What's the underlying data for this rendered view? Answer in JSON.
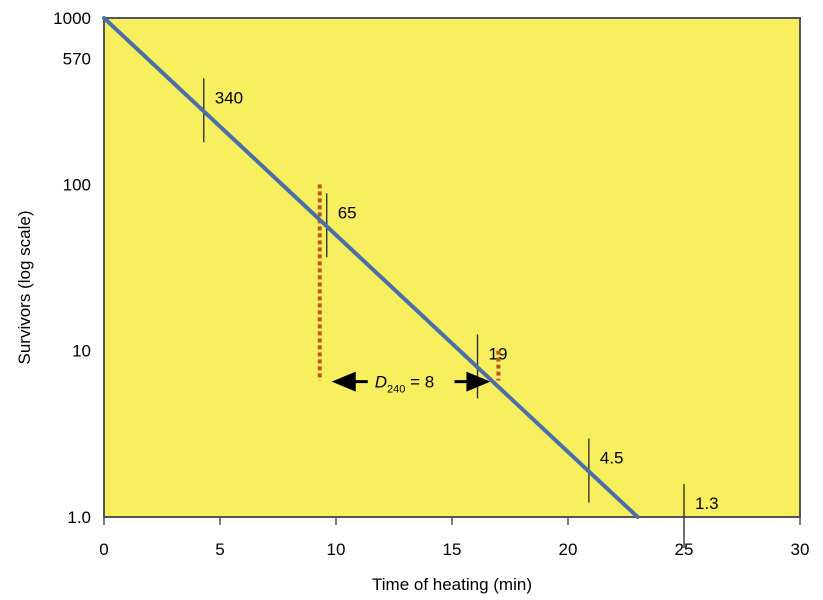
{
  "chart_data": {
    "type": "line",
    "xlabel": "Time of heating (min)",
    "ylabel": "Survivors (log scale)",
    "xlim": [
      0,
      30
    ],
    "ylim": [
      1.0,
      1000
    ],
    "y_scale": "log",
    "grid": false,
    "x_ticks": [
      {
        "value": 0,
        "label": "0"
      },
      {
        "value": 5,
        "label": "5"
      },
      {
        "value": 10,
        "label": "10"
      },
      {
        "value": 15,
        "label": "15"
      },
      {
        "value": 20,
        "label": "20"
      },
      {
        "value": 25,
        "label": "25"
      },
      {
        "value": 30,
        "label": "30"
      }
    ],
    "y_ticks": [
      {
        "value": 1.0,
        "label": "1.0"
      },
      {
        "value": 10,
        "label": "10"
      },
      {
        "value": 100,
        "label": "100"
      },
      {
        "value": 570,
        "label": "570"
      },
      {
        "value": 1000,
        "label": "1000"
      }
    ],
    "series": [
      {
        "x": [
          0,
          23
        ],
        "y": [
          1000,
          1.0
        ]
      }
    ],
    "markers": [
      {
        "x": 4.3,
        "label": "340"
      },
      {
        "x": 9.6,
        "label": "65"
      },
      {
        "x": 16.1,
        "label": "19"
      },
      {
        "x": 20.9,
        "label": "4.5"
      },
      {
        "x": 25.0,
        "label": "1.3"
      }
    ],
    "annotation": {
      "symbol": "D",
      "subscript": "240",
      "text": "= 8",
      "x_start": 9.3,
      "x_end": 17.0,
      "y_start": 100,
      "y_end": 10
    },
    "colors": {
      "background": "#f7ef5e",
      "line": "#4a6fa8",
      "dotted": "#c0531a",
      "axis": "#555555"
    }
  }
}
